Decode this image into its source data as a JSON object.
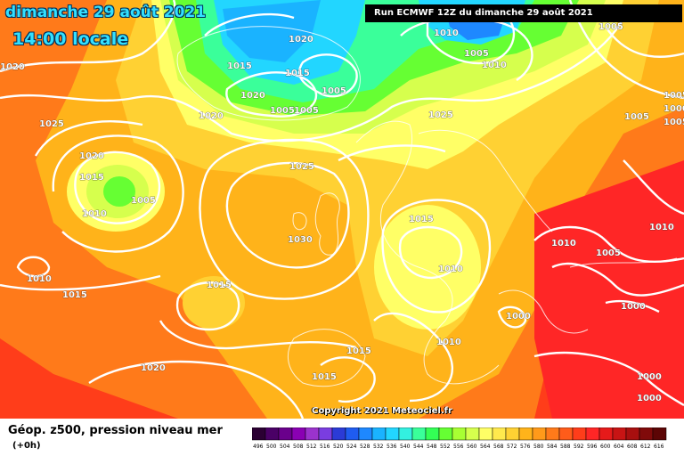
{
  "header": {
    "date": "dimanche 29 août 2021",
    "time": "14:00 locale",
    "run": "Run ECMWF 12Z du dimanche 29 août 2021"
  },
  "copyright": "Copyright 2021 Meteociel.fr",
  "legend": {
    "title": "Géop. z500, pression niveau mer",
    "subtitle": "(+0h)",
    "ticks": [
      "496",
      "500",
      "504",
      "508",
      "512",
      "516",
      "520",
      "524",
      "528",
      "532",
      "536",
      "540",
      "544",
      "548",
      "552",
      "556",
      "560",
      "564",
      "568",
      "572",
      "576",
      "580",
      "584",
      "588",
      "592",
      "596",
      "600",
      "604",
      "608",
      "612",
      "616"
    ],
    "colors": [
      "#2b0033",
      "#4a0066",
      "#6a008c",
      "#8a00b3",
      "#9b33cc",
      "#7a3de0",
      "#2b3bd6",
      "#1f5cf0",
      "#1e88ff",
      "#1ab3ff",
      "#22d6ff",
      "#33f0e0",
      "#3aff9a",
      "#33ff55",
      "#66ff33",
      "#a8ff33",
      "#d6ff4d",
      "#ffff66",
      "#ffe94d",
      "#ffd133",
      "#ffb31a",
      "#ff9a1a",
      "#ff7a1a",
      "#ff5c1a",
      "#ff3d1a",
      "#ff2626",
      "#e61a1a",
      "#c81414",
      "#a80f0f",
      "#800a0a",
      "#5c0505"
    ]
  },
  "isobars": [
    "1020",
    "1015",
    "1015",
    "1005",
    "1020",
    "1005",
    "1005",
    "1020",
    "1010",
    "1005",
    "1010",
    "1005",
    "1020",
    "1025",
    "1020",
    "1015",
    "1025",
    "1025",
    "1005",
    "1010",
    "1030",
    "1015",
    "1010",
    "1015",
    "1005",
    "1005",
    "1000",
    "1005",
    "1010",
    "1010",
    "1005",
    "1010",
    "1000",
    "1015",
    "1015",
    "1020",
    "1015",
    "1010",
    "1000",
    "1000",
    "1000"
  ]
}
